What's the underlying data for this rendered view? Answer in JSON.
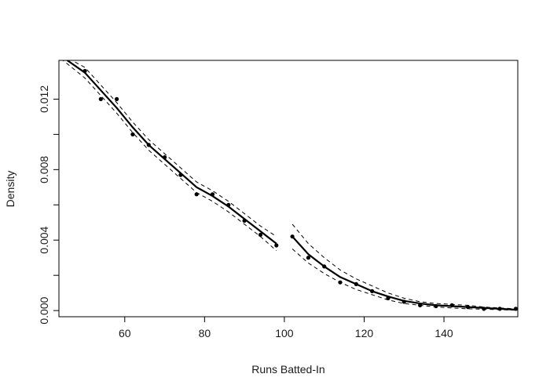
{
  "chart_data": {
    "type": "scatter",
    "title": "",
    "xlabel": "Runs Batted-In",
    "ylabel": "Density",
    "xlim": [
      43.5,
      158.5
    ],
    "ylim": [
      -0.00035,
      0.0142
    ],
    "x_ticks": [
      60,
      80,
      100,
      120,
      140
    ],
    "x_tick_labels": [
      "60",
      "80",
      "100",
      "120",
      "140"
    ],
    "y_ticks": [
      0.0,
      0.002,
      0.004,
      0.006,
      0.008,
      0.01,
      0.012
    ],
    "y_tick_labels": [
      "0.000",
      "",
      "0.004",
      "",
      "0.008",
      "",
      "0.012"
    ],
    "grid": false,
    "legend": "none",
    "colors": {
      "points": "#000000",
      "fit": "#000000",
      "band": "#000000"
    },
    "points": {
      "x": [
        50,
        54,
        58,
        62,
        66,
        70,
        74,
        78,
        82,
        86,
        90,
        94,
        98,
        102,
        106,
        110,
        114,
        118,
        122,
        126,
        130,
        134,
        138,
        142,
        146,
        150,
        154,
        158
      ],
      "y": [
        0.0136,
        0.012,
        0.012,
        0.01,
        0.0094,
        0.0087,
        0.0077,
        0.0066,
        0.0066,
        0.006,
        0.0051,
        0.0043,
        0.0037,
        0.0042,
        0.003,
        0.0025,
        0.0016,
        0.0015,
        0.0011,
        0.0007,
        0.0005,
        0.0003,
        0.00025,
        0.0003,
        0.0002,
        0.0001,
        0.0001,
        0.0001
      ]
    },
    "series": [
      {
        "style": "solid",
        "segments": [
          {
            "x": [
              45,
              50,
              54,
              58,
              62,
              66,
              70,
              74,
              78,
              82,
              86,
              90,
              94,
              98
            ],
            "y": [
              0.0143,
              0.0135,
              0.0125,
              0.0115,
              0.0104,
              0.0094,
              0.0086,
              0.0078,
              0.007,
              0.0065,
              0.0059,
              0.0052,
              0.0045,
              0.0038
            ]
          },
          {
            "x": [
              102,
              106,
              110,
              114,
              118,
              122,
              126,
              130,
              134,
              138,
              142,
              146,
              150,
              154,
              158
            ],
            "y": [
              0.0042,
              0.0032,
              0.0025,
              0.0019,
              0.0015,
              0.0011,
              0.0008,
              0.00055,
              0.0004,
              0.0003,
              0.00025,
              0.0002,
              0.00015,
              0.0001,
              5e-05
            ]
          }
        ]
      },
      {
        "style": "dashed",
        "segments": [
          {
            "x": [
              46,
              50,
              54,
              58,
              62,
              66,
              70,
              74,
              78,
              82,
              86,
              90,
              94,
              98
            ],
            "y": [
              0.0143,
              0.0138,
              0.0128,
              0.0118,
              0.0107,
              0.0097,
              0.0089,
              0.0081,
              0.0073,
              0.0068,
              0.0062,
              0.0055,
              0.0048,
              0.0042
            ]
          },
          {
            "x": [
              102,
              106,
              110,
              114,
              118,
              122,
              126,
              130,
              134,
              138,
              142,
              146,
              150,
              154,
              158
            ],
            "y": [
              0.0049,
              0.0038,
              0.003,
              0.0023,
              0.0018,
              0.0014,
              0.001,
              0.0007,
              0.0005,
              0.0004,
              0.00035,
              0.0003,
              0.0002,
              0.00015,
              0.0001
            ]
          }
        ]
      },
      {
        "style": "dashed",
        "segments": [
          {
            "x": [
              44,
              50,
              54,
              58,
              62,
              66,
              70,
              74,
              78,
              82,
              86,
              90,
              94,
              98
            ],
            "y": [
              0.0143,
              0.0132,
              0.0122,
              0.0112,
              0.0101,
              0.0091,
              0.0083,
              0.0075,
              0.0067,
              0.0062,
              0.0056,
              0.0049,
              0.0042,
              0.0034
            ]
          },
          {
            "x": [
              102,
              106,
              110,
              114,
              118,
              122,
              126,
              130,
              134,
              138,
              142,
              146,
              150,
              154,
              158
            ],
            "y": [
              0.0035,
              0.0027,
              0.0021,
              0.0016,
              0.0012,
              0.0009,
              0.0006,
              0.0004,
              0.0003,
              0.0002,
              0.00015,
              0.0001,
              8e-05,
              5e-05,
              2e-05
            ]
          }
        ]
      }
    ]
  }
}
